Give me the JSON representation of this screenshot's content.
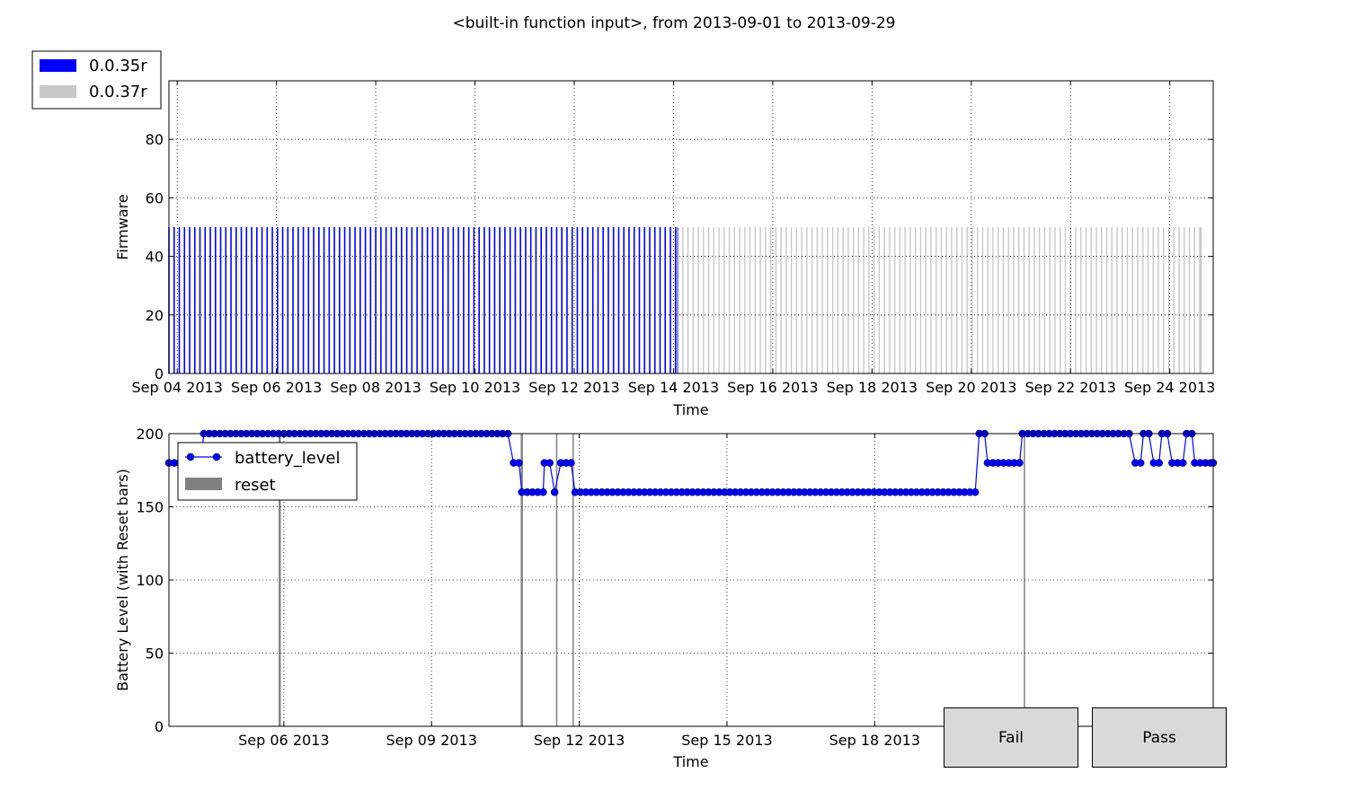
{
  "title": "<built-in function input>, from 2013-09-01 to 2013-09-29",
  "colors": {
    "blue": "#0000ff",
    "gray_bar": "#c8c8c8",
    "reset": "#808080",
    "grid": "#000000"
  },
  "chart_data": [
    {
      "type": "bar",
      "ylabel": "Firmware",
      "xlabel": "Time",
      "ylim": [
        0,
        100
      ],
      "xlim": [
        "2013-09-03 20:00",
        "2013-09-24 21:00"
      ],
      "yticks": [
        0,
        20,
        40,
        60,
        80
      ],
      "xticks": [
        "Sep 04 2013",
        "Sep 06 2013",
        "Sep 08 2013",
        "Sep 10 2013",
        "Sep 12 2013",
        "Sep 14 2013",
        "Sep 16 2013",
        "Sep 18 2013",
        "Sep 20 2013",
        "Sep 22 2013",
        "Sep 24 2013"
      ],
      "grid": true,
      "legend_position": "top-left",
      "series": [
        {
          "name": "0.0.35r",
          "color": "#0000ff",
          "bar_height": 50,
          "start": "2013-09-03 20:00",
          "end": "2013-09-14 02:00",
          "interval_hours": 2.5
        },
        {
          "name": "0.0.37r",
          "color": "#c8c8c8",
          "bar_height": 50,
          "start": "2013-09-14 02:00",
          "end": "2013-09-24 15:00",
          "interval_hours": 2.5
        }
      ]
    },
    {
      "type": "line",
      "ylabel": "Battery Level (with Reset bars)",
      "xlabel": "Time",
      "ylim": [
        0,
        200
      ],
      "xlim": [
        "2013-09-03 16:00",
        "2013-09-24 21:00"
      ],
      "yticks": [
        0,
        50,
        100,
        150,
        200
      ],
      "xticks": [
        "Sep 06 2013",
        "Sep 09 2013",
        "Sep 12 2013",
        "Sep 15 2013",
        "Sep 18 2013"
      ],
      "grid": true,
      "legend_position": "upper-left",
      "series": [
        {
          "name": "battery_level",
          "color": "#0000ff",
          "marker": "circle",
          "x": [
            "2013-09-03 16:00",
            "2013-09-04 09:00",
            "2013-09-10 16:00",
            "2013-09-10 20:00",
            "2013-09-11 07:00",
            "2013-09-11 12:00",
            "2013-09-11 15:00",
            "2013-09-11 20:00",
            "2013-09-11 22:00",
            "2013-09-20 03:00",
            "2013-09-20 07:00",
            "2013-09-21 00:00",
            "2013-09-23 07:00",
            "2013-09-23 11:00",
            "2013-09-23 16:00",
            "2013-09-23 20:00",
            "2013-09-24 01:00",
            "2013-09-24 08:00",
            "2013-09-24 12:00",
            "2013-09-24 21:00"
          ],
          "y": [
            180,
            200,
            180,
            160,
            180,
            160,
            180,
            180,
            160,
            200,
            180,
            200,
            180,
            200,
            180,
            200,
            180,
            200,
            180,
            180
          ]
        },
        {
          "name": "reset",
          "color": "#808080",
          "type": "bar",
          "x": [
            "2013-09-05 22:00",
            "2013-09-10 20:00",
            "2013-09-11 13:00",
            "2013-09-11 21:00",
            "2013-09-21 01:00"
          ]
        }
      ]
    }
  ],
  "buttons": {
    "fail": "Fail",
    "pass": "Pass"
  }
}
